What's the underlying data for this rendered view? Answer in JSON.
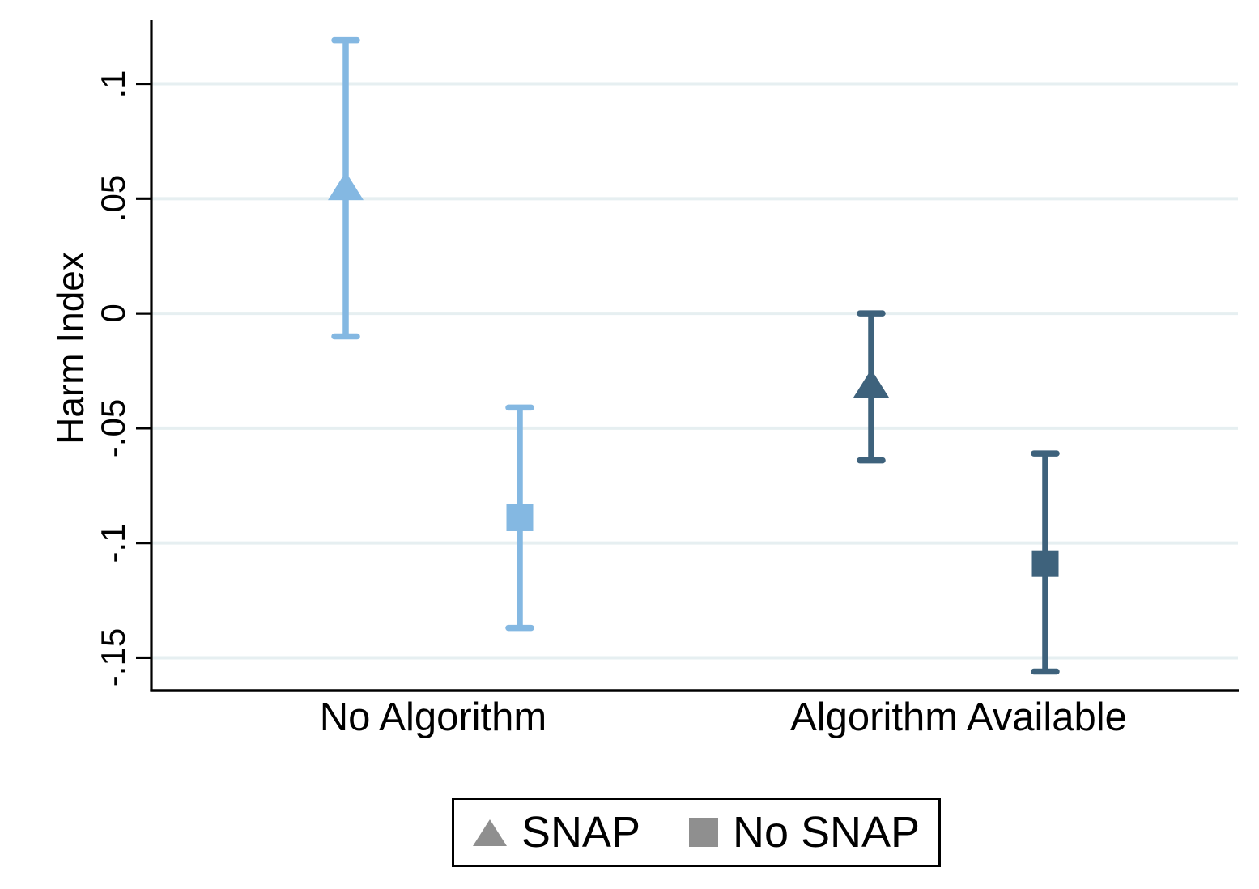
{
  "chart_data": {
    "type": "scatter",
    "subtype": "coefficient-plot-with-error-bars",
    "title": "",
    "xlabel": "",
    "ylabel": "Harm Index",
    "categories": [
      "No Algorithm",
      "Algorithm Available"
    ],
    "y_ticks": [
      {
        "value": 0.1,
        "label": ".1"
      },
      {
        "value": 0.05,
        "label": ".05"
      },
      {
        "value": 0.0,
        "label": "0"
      },
      {
        "value": -0.05,
        "label": "-.05"
      },
      {
        "value": -0.1,
        "label": "-.1"
      },
      {
        "value": -0.15,
        "label": "-.15"
      }
    ],
    "ylim": [
      -0.1643,
      0.1277
    ],
    "grid": true,
    "series": [
      {
        "name": "SNAP",
        "marker": "triangle",
        "points": [
          {
            "category": "No Algorithm",
            "value": 0.055,
            "ci_low": -0.01,
            "ci_high": 0.119
          },
          {
            "category": "Algorithm Available",
            "value": -0.031,
            "ci_low": -0.064,
            "ci_high": 0.0
          }
        ]
      },
      {
        "name": "No SNAP",
        "marker": "square",
        "points": [
          {
            "category": "No Algorithm",
            "value": -0.089,
            "ci_low": -0.137,
            "ci_high": -0.041
          },
          {
            "category": "Algorithm Available",
            "value": -0.109,
            "ci_low": -0.156,
            "ci_high": -0.061
          }
        ]
      }
    ],
    "category_colors": [
      "#84b8e2",
      "#3e627c"
    ],
    "gridline_color": "#e6eff1",
    "axis_color": "#000000",
    "legend": {
      "position": "bottom",
      "marker_color": "#8f8f8f",
      "items": [
        {
          "label": "SNAP",
          "marker": "triangle"
        },
        {
          "label": "No SNAP",
          "marker": "square"
        }
      ]
    }
  }
}
